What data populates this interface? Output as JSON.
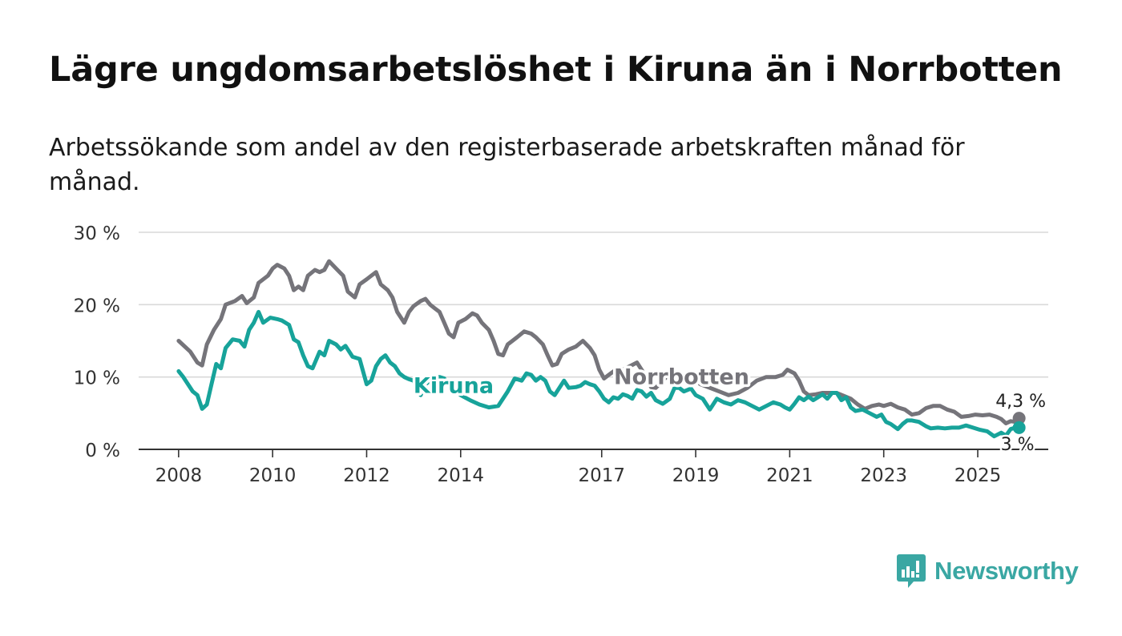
{
  "title": "Lägre ungdomsarbetslöshet i Kiruna än i Norrbotten",
  "subtitle": "Arbetssökande som andel av den registerbaserade arbetskraften månad för månad.",
  "brand": {
    "name": "Newsworthy",
    "icon": "bar-chart-logo-icon"
  },
  "colors": {
    "norrbotten": "#75747a",
    "kiruna": "#17a39a",
    "grid": "#d9d9d9",
    "axis": "#333333",
    "brand": "#3aa7a3"
  },
  "chart_data": {
    "type": "line",
    "title": "Lägre ungdomsarbetslöshet i Kiruna än i Norrbotten",
    "xlabel": "",
    "ylabel": "",
    "ylim": [
      0,
      30
    ],
    "grid": true,
    "y_ticks": [
      {
        "value": 0,
        "label": "0 %"
      },
      {
        "value": 10,
        "label": "10 %"
      },
      {
        "value": 20,
        "label": "20 %"
      },
      {
        "value": 30,
        "label": "30 %"
      }
    ],
    "x_ticks": [
      {
        "value": 2008,
        "label": "2008"
      },
      {
        "value": 2010,
        "label": "2010"
      },
      {
        "value": 2012,
        "label": "2012"
      },
      {
        "value": 2014,
        "label": "2014"
      },
      {
        "value": 2017,
        "label": "2017"
      },
      {
        "value": 2019,
        "label": "2019"
      },
      {
        "value": 2021,
        "label": "2021"
      },
      {
        "value": 2023,
        "label": "2023"
      },
      {
        "value": 2025,
        "label": "2025"
      }
    ],
    "xlim": [
      2007.15,
      2026.5
    ],
    "series": [
      {
        "name": "Norrbotten",
        "label": "Norrbotten",
        "label_at": [
          2018.7,
          9.0
        ],
        "end_label": "4,3 %",
        "points": [
          [
            2008.0,
            15.0
          ],
          [
            2008.25,
            13.5
          ],
          [
            2008.4,
            12.0
          ],
          [
            2008.5,
            11.6
          ],
          [
            2008.6,
            14.5
          ],
          [
            2008.75,
            16.5
          ],
          [
            2008.9,
            18.0
          ],
          [
            2009.0,
            20.0
          ],
          [
            2009.2,
            20.5
          ],
          [
            2009.35,
            21.2
          ],
          [
            2009.45,
            20.2
          ],
          [
            2009.6,
            21.0
          ],
          [
            2009.7,
            23.0
          ],
          [
            2009.9,
            24.0
          ],
          [
            2010.0,
            25.0
          ],
          [
            2010.1,
            25.5
          ],
          [
            2010.25,
            25.0
          ],
          [
            2010.35,
            24.0
          ],
          [
            2010.45,
            22.0
          ],
          [
            2010.55,
            22.5
          ],
          [
            2010.65,
            22.0
          ],
          [
            2010.75,
            24.0
          ],
          [
            2010.9,
            24.8
          ],
          [
            2011.0,
            24.5
          ],
          [
            2011.1,
            24.8
          ],
          [
            2011.2,
            26.0
          ],
          [
            2011.35,
            25.0
          ],
          [
            2011.5,
            24.0
          ],
          [
            2011.6,
            21.8
          ],
          [
            2011.75,
            21.0
          ],
          [
            2011.85,
            22.8
          ],
          [
            2012.0,
            23.5
          ],
          [
            2012.1,
            24.0
          ],
          [
            2012.2,
            24.5
          ],
          [
            2012.3,
            22.8
          ],
          [
            2012.45,
            22.0
          ],
          [
            2012.55,
            21.0
          ],
          [
            2012.65,
            19.0
          ],
          [
            2012.8,
            17.5
          ],
          [
            2012.9,
            19.0
          ],
          [
            2013.0,
            19.8
          ],
          [
            2013.15,
            20.5
          ],
          [
            2013.25,
            20.8
          ],
          [
            2013.35,
            20.0
          ],
          [
            2013.45,
            19.5
          ],
          [
            2013.55,
            19.0
          ],
          [
            2013.65,
            17.5
          ],
          [
            2013.75,
            16.0
          ],
          [
            2013.85,
            15.5
          ],
          [
            2013.95,
            17.5
          ],
          [
            2014.1,
            18.0
          ],
          [
            2014.25,
            18.8
          ],
          [
            2014.35,
            18.5
          ],
          [
            2014.45,
            17.5
          ],
          [
            2014.6,
            16.5
          ],
          [
            2014.7,
            15.0
          ],
          [
            2014.8,
            13.2
          ],
          [
            2014.9,
            13.0
          ],
          [
            2015.0,
            14.5
          ],
          [
            2015.2,
            15.5
          ],
          [
            2015.35,
            16.3
          ],
          [
            2015.5,
            16.0
          ],
          [
            2015.6,
            15.5
          ],
          [
            2015.75,
            14.5
          ],
          [
            2015.85,
            13.0
          ],
          [
            2015.95,
            11.6
          ],
          [
            2016.05,
            11.8
          ],
          [
            2016.15,
            13.2
          ],
          [
            2016.3,
            13.8
          ],
          [
            2016.45,
            14.2
          ],
          [
            2016.6,
            15.0
          ],
          [
            2016.75,
            14.0
          ],
          [
            2016.85,
            13.0
          ],
          [
            2016.95,
            11.0
          ],
          [
            2017.05,
            9.8
          ],
          [
            2017.15,
            10.3
          ],
          [
            2017.3,
            11.0
          ],
          [
            2017.45,
            11.0
          ],
          [
            2017.6,
            11.5
          ],
          [
            2017.75,
            12.0
          ],
          [
            2017.85,
            11.0
          ],
          [
            2017.95,
            10.0
          ],
          [
            2018.05,
            8.6
          ],
          [
            2018.15,
            8.5
          ],
          [
            2018.3,
            9.5
          ],
          [
            2018.45,
            10.5
          ],
          [
            2018.55,
            10.8
          ],
          [
            2018.7,
            10.3
          ],
          [
            2018.9,
            10.0
          ],
          [
            2019.1,
            9.0
          ],
          [
            2019.3,
            8.5
          ],
          [
            2019.5,
            8.0
          ],
          [
            2019.7,
            7.5
          ],
          [
            2019.9,
            7.8
          ],
          [
            2020.1,
            8.5
          ],
          [
            2020.3,
            9.5
          ],
          [
            2020.5,
            10.0
          ],
          [
            2020.7,
            10.0
          ],
          [
            2020.85,
            10.3
          ],
          [
            2020.95,
            11.0
          ],
          [
            2021.1,
            10.5
          ],
          [
            2021.2,
            9.5
          ],
          [
            2021.3,
            8.0
          ],
          [
            2021.4,
            7.5
          ],
          [
            2021.55,
            7.6
          ],
          [
            2021.7,
            7.8
          ],
          [
            2021.85,
            7.8
          ],
          [
            2022.0,
            7.8
          ],
          [
            2022.15,
            7.4
          ],
          [
            2022.3,
            7.0
          ],
          [
            2022.45,
            6.2
          ],
          [
            2022.6,
            5.6
          ],
          [
            2022.75,
            6.0
          ],
          [
            2022.9,
            6.2
          ],
          [
            2023.0,
            6.0
          ],
          [
            2023.15,
            6.3
          ],
          [
            2023.3,
            5.8
          ],
          [
            2023.45,
            5.5
          ],
          [
            2023.6,
            4.8
          ],
          [
            2023.75,
            5.0
          ],
          [
            2023.9,
            5.7
          ],
          [
            2024.05,
            6.0
          ],
          [
            2024.2,
            6.0
          ],
          [
            2024.35,
            5.5
          ],
          [
            2024.5,
            5.2
          ],
          [
            2024.65,
            4.5
          ],
          [
            2024.8,
            4.6
          ],
          [
            2024.95,
            4.8
          ],
          [
            2025.1,
            4.7
          ],
          [
            2025.25,
            4.8
          ],
          [
            2025.4,
            4.5
          ],
          [
            2025.5,
            4.2
          ],
          [
            2025.6,
            3.6
          ],
          [
            2025.7,
            3.9
          ],
          [
            2025.8,
            3.8
          ],
          [
            2025.88,
            4.3
          ]
        ]
      },
      {
        "name": "Kiruna",
        "label": "Kiruna",
        "label_at": [
          2013.85,
          7.8
        ],
        "end_label": "3 %",
        "points": [
          [
            2008.0,
            10.8
          ],
          [
            2008.1,
            10.0
          ],
          [
            2008.2,
            9.0
          ],
          [
            2008.3,
            8.0
          ],
          [
            2008.4,
            7.5
          ],
          [
            2008.5,
            5.6
          ],
          [
            2008.6,
            6.2
          ],
          [
            2008.7,
            9.0
          ],
          [
            2008.8,
            11.8
          ],
          [
            2008.9,
            11.2
          ],
          [
            2009.0,
            14.0
          ],
          [
            2009.15,
            15.2
          ],
          [
            2009.3,
            15.0
          ],
          [
            2009.4,
            14.2
          ],
          [
            2009.5,
            16.5
          ],
          [
            2009.6,
            17.5
          ],
          [
            2009.7,
            19.0
          ],
          [
            2009.8,
            17.5
          ],
          [
            2009.95,
            18.2
          ],
          [
            2010.1,
            18.0
          ],
          [
            2010.2,
            17.8
          ],
          [
            2010.35,
            17.2
          ],
          [
            2010.45,
            15.2
          ],
          [
            2010.55,
            14.8
          ],
          [
            2010.65,
            13.0
          ],
          [
            2010.75,
            11.5
          ],
          [
            2010.85,
            11.2
          ],
          [
            2011.0,
            13.5
          ],
          [
            2011.1,
            13.0
          ],
          [
            2011.2,
            15.0
          ],
          [
            2011.35,
            14.5
          ],
          [
            2011.45,
            13.8
          ],
          [
            2011.55,
            14.3
          ],
          [
            2011.7,
            12.8
          ],
          [
            2011.85,
            12.5
          ],
          [
            2012.0,
            9.0
          ],
          [
            2012.1,
            9.5
          ],
          [
            2012.2,
            11.5
          ],
          [
            2012.3,
            12.5
          ],
          [
            2012.4,
            13.0
          ],
          [
            2012.5,
            12.0
          ],
          [
            2012.6,
            11.5
          ],
          [
            2012.7,
            10.5
          ],
          [
            2012.8,
            10.0
          ],
          [
            2012.9,
            9.7
          ],
          [
            2013.0,
            9.5
          ],
          [
            2013.15,
            7.5
          ],
          [
            2013.25,
            9.0
          ],
          [
            2013.35,
            9.5
          ],
          [
            2013.45,
            10.0
          ],
          [
            2013.55,
            10.0
          ],
          [
            2013.65,
            9.8
          ],
          [
            2013.8,
            8.5
          ],
          [
            2014.0,
            7.5
          ],
          [
            2014.2,
            6.8
          ],
          [
            2014.4,
            6.2
          ],
          [
            2014.6,
            5.8
          ],
          [
            2014.8,
            6.0
          ],
          [
            2015.0,
            8.0
          ],
          [
            2015.15,
            9.8
          ],
          [
            2015.3,
            9.5
          ],
          [
            2015.4,
            10.5
          ],
          [
            2015.5,
            10.3
          ],
          [
            2015.6,
            9.5
          ],
          [
            2015.7,
            10.0
          ],
          [
            2015.8,
            9.5
          ],
          [
            2015.9,
            8.0
          ],
          [
            2016.0,
            7.5
          ],
          [
            2016.1,
            8.5
          ],
          [
            2016.2,
            9.5
          ],
          [
            2016.3,
            8.5
          ],
          [
            2016.45,
            8.6
          ],
          [
            2016.55,
            8.8
          ],
          [
            2016.65,
            9.3
          ],
          [
            2016.75,
            9.0
          ],
          [
            2016.85,
            8.8
          ],
          [
            2016.95,
            8.0
          ],
          [
            2017.05,
            7.0
          ],
          [
            2017.15,
            6.5
          ],
          [
            2017.25,
            7.2
          ],
          [
            2017.35,
            7.0
          ],
          [
            2017.45,
            7.6
          ],
          [
            2017.55,
            7.4
          ],
          [
            2017.65,
            7.0
          ],
          [
            2017.75,
            8.2
          ],
          [
            2017.85,
            8.0
          ],
          [
            2017.95,
            7.3
          ],
          [
            2018.05,
            7.8
          ],
          [
            2018.15,
            6.8
          ],
          [
            2018.3,
            6.3
          ],
          [
            2018.45,
            7.0
          ],
          [
            2018.55,
            8.5
          ],
          [
            2018.65,
            8.5
          ],
          [
            2018.75,
            8.0
          ],
          [
            2018.9,
            8.4
          ],
          [
            2019.0,
            7.5
          ],
          [
            2019.15,
            7.0
          ],
          [
            2019.3,
            5.5
          ],
          [
            2019.45,
            7.0
          ],
          [
            2019.6,
            6.5
          ],
          [
            2019.75,
            6.2
          ],
          [
            2019.9,
            6.8
          ],
          [
            2020.05,
            6.5
          ],
          [
            2020.2,
            6.0
          ],
          [
            2020.35,
            5.5
          ],
          [
            2020.5,
            6.0
          ],
          [
            2020.65,
            6.5
          ],
          [
            2020.8,
            6.2
          ],
          [
            2020.9,
            5.8
          ],
          [
            2021.0,
            5.5
          ],
          [
            2021.1,
            6.3
          ],
          [
            2021.2,
            7.2
          ],
          [
            2021.3,
            6.8
          ],
          [
            2021.4,
            7.3
          ],
          [
            2021.5,
            6.8
          ],
          [
            2021.6,
            7.2
          ],
          [
            2021.7,
            7.6
          ],
          [
            2021.8,
            7.0
          ],
          [
            2021.9,
            7.8
          ],
          [
            2022.0,
            7.8
          ],
          [
            2022.1,
            6.8
          ],
          [
            2022.2,
            7.2
          ],
          [
            2022.3,
            5.8
          ],
          [
            2022.4,
            5.3
          ],
          [
            2022.55,
            5.5
          ],
          [
            2022.7,
            5.0
          ],
          [
            2022.85,
            4.5
          ],
          [
            2022.95,
            4.8
          ],
          [
            2023.05,
            3.8
          ],
          [
            2023.15,
            3.5
          ],
          [
            2023.3,
            2.8
          ],
          [
            2023.4,
            3.5
          ],
          [
            2023.5,
            4.0
          ],
          [
            2023.6,
            4.0
          ],
          [
            2023.75,
            3.8
          ],
          [
            2023.9,
            3.2
          ],
          [
            2024.0,
            2.9
          ],
          [
            2024.15,
            3.0
          ],
          [
            2024.3,
            2.9
          ],
          [
            2024.45,
            3.0
          ],
          [
            2024.6,
            3.0
          ],
          [
            2024.75,
            3.3
          ],
          [
            2024.9,
            3.0
          ],
          [
            2025.05,
            2.7
          ],
          [
            2025.2,
            2.5
          ],
          [
            2025.35,
            1.8
          ],
          [
            2025.5,
            2.3
          ],
          [
            2025.6,
            1.9
          ],
          [
            2025.7,
            2.8
          ],
          [
            2025.8,
            3.0
          ],
          [
            2025.88,
            3.0
          ]
        ]
      }
    ]
  }
}
